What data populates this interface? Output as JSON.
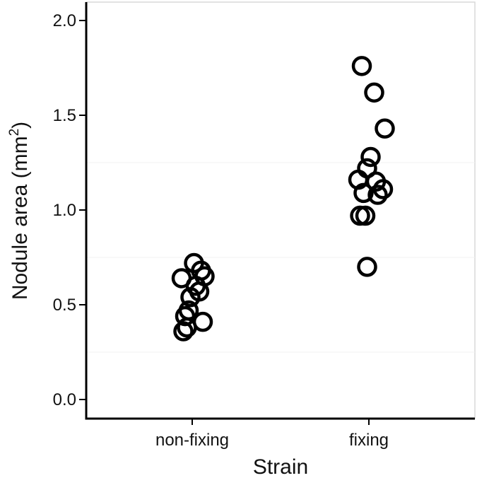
{
  "chart_data": {
    "type": "scatter",
    "title": "",
    "xlabel": "Strain",
    "ylabel": "Nodule area (mm²)",
    "ylabel_main": "Nodule area (mm",
    "ylabel_sup": "2",
    "ylabel_close": ")",
    "categories": [
      "non-fixing",
      "fixing"
    ],
    "ylim": [
      -0.05,
      2.1
    ],
    "yticks": [
      0.0,
      0.5,
      1.0,
      1.5,
      2.0
    ],
    "ytick_labels": [
      "0.0",
      "0.5",
      "1.0",
      "1.5",
      "2.0"
    ],
    "grid": false,
    "legend": "none",
    "marker": "open-circle",
    "series": [
      {
        "category": "non-fixing",
        "points": [
          {
            "offset": 0.01,
            "y": 0.72
          },
          {
            "offset": 0.05,
            "y": 0.68
          },
          {
            "offset": 0.07,
            "y": 0.65
          },
          {
            "offset": -0.06,
            "y": 0.64
          },
          {
            "offset": 0.02,
            "y": 0.6
          },
          {
            "offset": 0.04,
            "y": 0.57
          },
          {
            "offset": -0.01,
            "y": 0.54
          },
          {
            "offset": -0.02,
            "y": 0.47
          },
          {
            "offset": -0.04,
            "y": 0.44
          },
          {
            "offset": 0.06,
            "y": 0.41
          },
          {
            "offset": -0.03,
            "y": 0.38
          },
          {
            "offset": -0.05,
            "y": 0.36
          }
        ]
      },
      {
        "category": "fixing",
        "points": [
          {
            "offset": -0.04,
            "y": 1.76
          },
          {
            "offset": 0.03,
            "y": 1.62
          },
          {
            "offset": 0.09,
            "y": 1.43
          },
          {
            "offset": 0.01,
            "y": 1.28
          },
          {
            "offset": -0.01,
            "y": 1.22
          },
          {
            "offset": -0.06,
            "y": 1.16
          },
          {
            "offset": 0.04,
            "y": 1.15
          },
          {
            "offset": 0.08,
            "y": 1.11
          },
          {
            "offset": -0.03,
            "y": 1.09
          },
          {
            "offset": 0.05,
            "y": 1.08
          },
          {
            "offset": -0.02,
            "y": 0.97
          },
          {
            "offset": -0.05,
            "y": 0.97
          },
          {
            "offset": -0.01,
            "y": 0.7
          }
        ]
      }
    ]
  }
}
